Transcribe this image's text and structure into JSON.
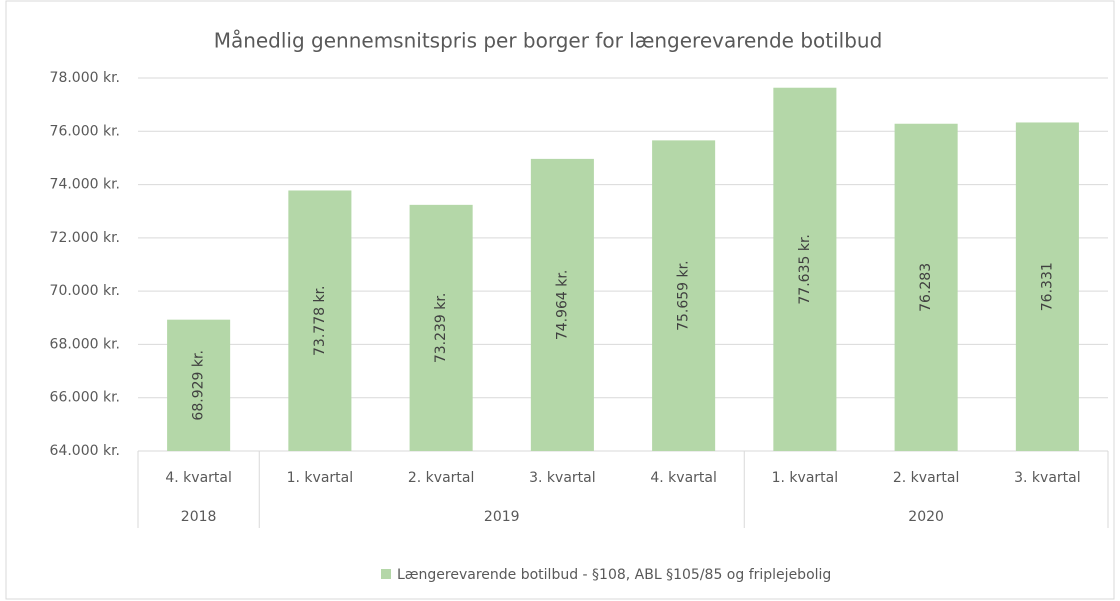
{
  "chart_data": {
    "type": "bar",
    "title": "Månedlig gennemsnitspris per borger for længerevarende botilbud",
    "categories": [
      "4. kvartal",
      "1. kvartal",
      "2. kvartal",
      "3. kvartal",
      "4. kvartal",
      "1. kvartal",
      "2. kvartal",
      "3. kvartal"
    ],
    "years": [
      "2018",
      "2019",
      "2019",
      "2019",
      "2019",
      "2020",
      "2020",
      "2020"
    ],
    "series": [
      {
        "name": "Længerevarende botilbud - §108, ABL §105/85 og friplejebolig",
        "color": "#b4d7a8",
        "values": [
          68929,
          73778,
          73239,
          74964,
          75659,
          77635,
          76283,
          76331
        ],
        "value_labels": [
          "68.929 kr.",
          "73.778 kr.",
          "73.239 kr.",
          "74.964 kr.",
          "75.659 kr.",
          "77.635 kr.",
          "76.283",
          "76.331"
        ]
      }
    ],
    "ylim": [
      64000,
      78000
    ],
    "yticks": [
      {
        "value": 64000,
        "label": "64.000 kr."
      },
      {
        "value": 66000,
        "label": "66.000 kr."
      },
      {
        "value": 68000,
        "label": "68.000 kr."
      },
      {
        "value": 70000,
        "label": "70.000 kr."
      },
      {
        "value": 72000,
        "label": "72.000 kr."
      },
      {
        "value": 74000,
        "label": "74.000 kr."
      },
      {
        "value": 76000,
        "label": "76.000 kr."
      },
      {
        "value": 78000,
        "label": "78.000 kr."
      }
    ],
    "grid": true,
    "legend": "bottom"
  }
}
